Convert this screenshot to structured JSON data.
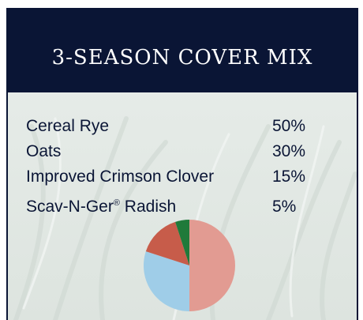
{
  "title": "3-SEASON COVER MIX",
  "chart_data": {
    "type": "pie",
    "title": "3-SEASON COVER MIX",
    "categories": [
      "Cereal Rye",
      "Oats",
      "Improved Crimson Clover",
      "Scav-N-Ger® Radish"
    ],
    "labels": [
      {
        "name": "Cereal Rye",
        "superscript": ""
      },
      {
        "name": "Oats",
        "superscript": ""
      },
      {
        "name": "Improved Crimson Clover",
        "superscript": ""
      },
      {
        "name": "Scav-N-Ger",
        "superscript": "®",
        "suffix": " Radish"
      }
    ],
    "values": [
      50,
      30,
      15,
      5
    ],
    "value_labels": [
      "50%",
      "30%",
      "15%",
      "5%"
    ],
    "colors": [
      "#e29b92",
      "#9fcde8",
      "#c75c4a",
      "#1f7a3a"
    ],
    "legend": "left-list"
  },
  "colors": {
    "header_bg": "#0a1535",
    "text": "#0a1535"
  }
}
